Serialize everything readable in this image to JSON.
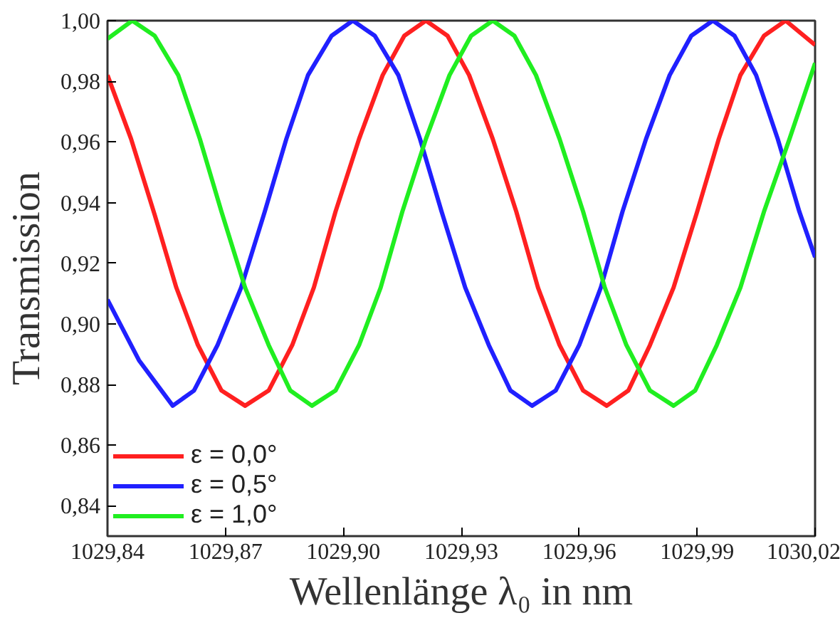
{
  "chart_data": {
    "type": "line",
    "xlabel": "Wellenlänge λ₀ in nm",
    "ylabel": "Transmission",
    "xlim": [
      1029.84,
      1030.02
    ],
    "ylim": [
      0.83,
      1.0
    ],
    "xticks": [
      {
        "value": 1029.84,
        "label": "1029,84"
      },
      {
        "value": 1029.87,
        "label": "1029,87"
      },
      {
        "value": 1029.9,
        "label": "1029,90"
      },
      {
        "value": 1029.93,
        "label": "1029,93"
      },
      {
        "value": 1029.96,
        "label": "1029,96"
      },
      {
        "value": 1029.99,
        "label": "1029,99"
      },
      {
        "value": 1030.02,
        "label": "1030,02"
      }
    ],
    "yticks": [
      {
        "value": 0.84,
        "label": "0,84"
      },
      {
        "value": 0.86,
        "label": "0,86"
      },
      {
        "value": 0.88,
        "label": "0,88"
      },
      {
        "value": 0.9,
        "label": "0,90"
      },
      {
        "value": 0.92,
        "label": "0,92"
      },
      {
        "value": 0.94,
        "label": "0,94"
      },
      {
        "value": 0.96,
        "label": "0,96"
      },
      {
        "value": 0.98,
        "label": "0,98"
      },
      {
        "value": 1.0,
        "label": "1,00"
      }
    ],
    "grid": false,
    "legend": "bottom left",
    "marker": "none",
    "line_style": "solid",
    "series": [
      {
        "name": "ε = 0,0°",
        "color": "#ff2020",
        "x": [
          1029.84,
          1029.846,
          1029.852,
          1029.8575,
          1029.863,
          1029.869,
          1029.875,
          1029.881,
          1029.887,
          1029.8925,
          1029.898,
          1029.904,
          1029.91,
          1029.9155,
          1029.921,
          1029.9265,
          1029.932,
          1029.938,
          1029.944,
          1029.9495,
          1029.955,
          1029.961,
          1029.967,
          1029.9725,
          1029.978,
          1029.984,
          1029.99,
          1029.9955,
          1030.001,
          1030.007,
          1030.0125,
          1030.02
        ],
        "values": [
          0.982,
          0.961,
          0.936,
          0.912,
          0.893,
          0.878,
          0.873,
          0.878,
          0.893,
          0.912,
          0.937,
          0.961,
          0.982,
          0.995,
          1.0,
          0.995,
          0.982,
          0.961,
          0.937,
          0.912,
          0.893,
          0.878,
          0.873,
          0.878,
          0.893,
          0.912,
          0.937,
          0.961,
          0.982,
          0.995,
          1.0,
          0.992
        ]
      },
      {
        "name": "ε = 0,5°",
        "color": "#2020ff",
        "x": [
          1029.84,
          1029.848,
          1029.8566,
          1029.862,
          1029.868,
          1029.874,
          1029.88,
          1029.8855,
          1029.891,
          1029.897,
          1029.9024,
          1029.908,
          1029.914,
          1029.9195,
          1029.925,
          1029.931,
          1029.937,
          1029.9425,
          1029.948,
          1029.954,
          1029.96,
          1029.9655,
          1029.971,
          1029.977,
          1029.983,
          1029.9885,
          1029.994,
          1029.9995,
          1030.005,
          1030.0105,
          1030.016,
          1030.02
        ],
        "values": [
          0.908,
          0.888,
          0.873,
          0.878,
          0.893,
          0.912,
          0.937,
          0.961,
          0.982,
          0.995,
          1.0,
          0.995,
          0.982,
          0.961,
          0.937,
          0.912,
          0.893,
          0.878,
          0.873,
          0.878,
          0.893,
          0.912,
          0.937,
          0.961,
          0.982,
          0.995,
          1.0,
          0.995,
          0.982,
          0.961,
          0.937,
          0.922
        ]
      },
      {
        "name": "ε = 1,0°",
        "color": "#20ee20",
        "x": [
          1029.84,
          1029.8463,
          1029.852,
          1029.858,
          1029.8635,
          1029.869,
          1029.875,
          1029.881,
          1029.8865,
          1029.892,
          1029.898,
          1029.904,
          1029.9095,
          1029.915,
          1029.921,
          1029.927,
          1029.9325,
          1029.938,
          1029.9435,
          1029.949,
          1029.955,
          1029.961,
          1029.9665,
          1029.972,
          1029.978,
          1029.984,
          1029.9895,
          1029.995,
          1030.001,
          1030.007,
          1030.0135,
          1030.02
        ],
        "values": [
          0.994,
          1.0,
          0.995,
          0.982,
          0.961,
          0.937,
          0.912,
          0.893,
          0.878,
          0.873,
          0.878,
          0.893,
          0.912,
          0.937,
          0.961,
          0.982,
          0.995,
          1.0,
          0.995,
          0.982,
          0.961,
          0.937,
          0.912,
          0.893,
          0.878,
          0.873,
          0.878,
          0.893,
          0.912,
          0.937,
          0.961,
          0.986
        ]
      }
    ]
  }
}
